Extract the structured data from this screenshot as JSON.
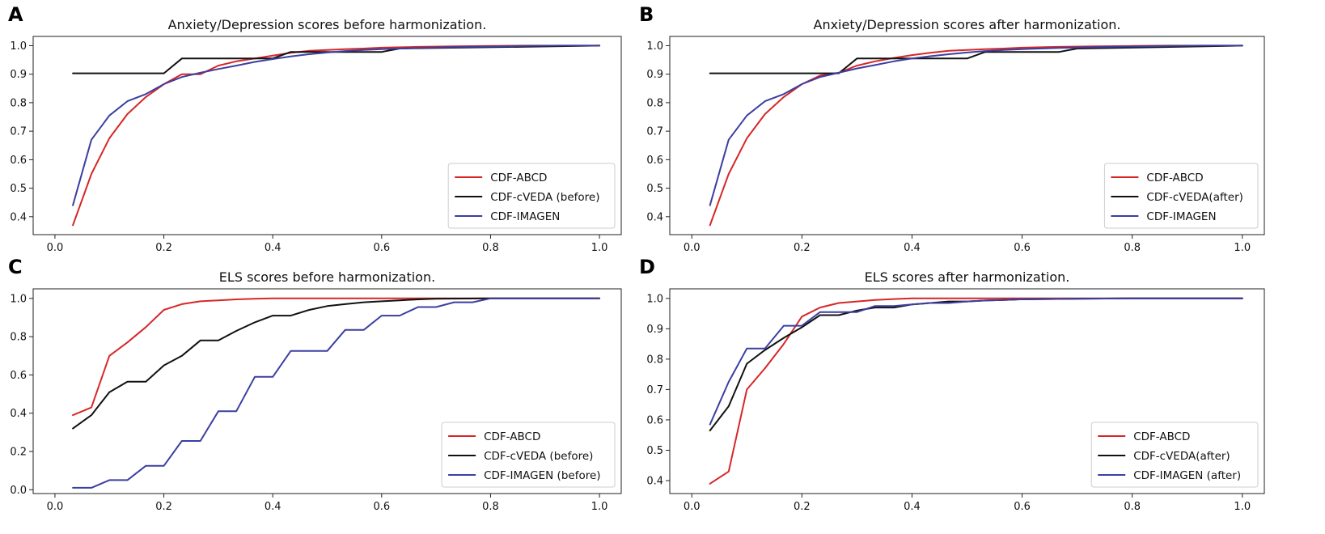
{
  "chart_data": [
    {
      "panel": "A",
      "type": "line",
      "title": "Anxiety/Depression scores before harmonization.",
      "xlim": [
        0.0,
        1.0
      ],
      "ylim": [
        0.35,
        1.0
      ],
      "xticks": [
        "0.0",
        "0.2",
        "0.4",
        "0.6",
        "0.8",
        "1.0"
      ],
      "yticks": [
        "0.4",
        "0.5",
        "0.6",
        "0.7",
        "0.8",
        "0.9",
        "1.0"
      ],
      "xtick_values": [
        0.0,
        0.2,
        0.4,
        0.6,
        0.8,
        1.0
      ],
      "ytick_values": [
        0.4,
        0.5,
        0.6,
        0.7,
        0.8,
        0.9,
        1.0
      ],
      "legend_position": "lower-right",
      "series": [
        {
          "name": "CDF-ABCD",
          "color": "#d62728",
          "x": [
            0.033,
            0.067,
            0.1,
            0.133,
            0.167,
            0.2,
            0.233,
            0.267,
            0.3,
            0.333,
            0.367,
            0.4,
            0.433,
            0.467,
            0.5,
            0.533,
            0.567,
            0.6,
            0.667,
            0.733,
            0.8,
            0.867,
            0.933,
            1.0
          ],
          "y": [
            0.37,
            0.55,
            0.675,
            0.76,
            0.82,
            0.865,
            0.9,
            0.9,
            0.93,
            0.945,
            0.955,
            0.965,
            0.975,
            0.982,
            0.985,
            0.988,
            0.99,
            0.993,
            0.996,
            0.998,
            0.999,
            1.0,
            1.0,
            1.0
          ]
        },
        {
          "name": "CDF-cVEDA (before)",
          "color": "#111111",
          "x": [
            0.033,
            0.2,
            0.233,
            0.4,
            0.433,
            0.6,
            0.633,
            1.0
          ],
          "y": [
            0.903,
            0.903,
            0.955,
            0.955,
            0.978,
            0.978,
            0.99,
            1.0
          ]
        },
        {
          "name": "CDF-IMAGEN",
          "color": "#3b3fa0",
          "x": [
            0.033,
            0.067,
            0.1,
            0.133,
            0.167,
            0.2,
            0.233,
            0.267,
            0.3,
            0.333,
            0.367,
            0.4,
            0.433,
            0.467,
            0.5,
            0.533,
            0.567,
            0.6,
            0.667,
            0.733,
            0.8,
            0.867,
            0.933,
            1.0
          ],
          "y": [
            0.44,
            0.67,
            0.755,
            0.805,
            0.83,
            0.865,
            0.89,
            0.905,
            0.918,
            0.93,
            0.943,
            0.953,
            0.962,
            0.97,
            0.976,
            0.981,
            0.985,
            0.988,
            0.992,
            0.995,
            0.997,
            0.999,
            1.0,
            1.0
          ]
        }
      ]
    },
    {
      "panel": "B",
      "type": "line",
      "title": "Anxiety/Depression scores after harmonization.",
      "xlim": [
        0.0,
        1.0
      ],
      "ylim": [
        0.35,
        1.0
      ],
      "xticks": [
        "0.0",
        "0.2",
        "0.4",
        "0.6",
        "0.8",
        "1.0"
      ],
      "yticks": [
        "0.4",
        "0.5",
        "0.6",
        "0.7",
        "0.8",
        "0.9",
        "1.0"
      ],
      "xtick_values": [
        0.0,
        0.2,
        0.4,
        0.6,
        0.8,
        1.0
      ],
      "ytick_values": [
        0.4,
        0.5,
        0.6,
        0.7,
        0.8,
        0.9,
        1.0
      ],
      "legend_position": "lower-right",
      "series": [
        {
          "name": "CDF-ABCD",
          "color": "#d62728",
          "x": [
            0.033,
            0.067,
            0.1,
            0.133,
            0.167,
            0.2,
            0.233,
            0.267,
            0.3,
            0.333,
            0.367,
            0.4,
            0.433,
            0.467,
            0.5,
            0.533,
            0.567,
            0.6,
            0.667,
            0.733,
            0.8,
            0.867,
            0.933,
            1.0
          ],
          "y": [
            0.37,
            0.55,
            0.675,
            0.76,
            0.82,
            0.865,
            0.895,
            0.905,
            0.93,
            0.945,
            0.957,
            0.967,
            0.975,
            0.982,
            0.985,
            0.988,
            0.99,
            0.993,
            0.996,
            0.998,
            0.999,
            1.0,
            1.0,
            1.0
          ]
        },
        {
          "name": "CDF-cVEDA(after)",
          "color": "#111111",
          "x": [
            0.033,
            0.267,
            0.3,
            0.367,
            0.4,
            0.5,
            0.533,
            0.667,
            0.7,
            1.0
          ],
          "y": [
            0.903,
            0.903,
            0.955,
            0.955,
            0.955,
            0.955,
            0.978,
            0.978,
            0.99,
            1.0
          ]
        },
        {
          "name": "CDF-IMAGEN",
          "color": "#3b3fa0",
          "x": [
            0.033,
            0.067,
            0.1,
            0.133,
            0.167,
            0.2,
            0.233,
            0.267,
            0.3,
            0.333,
            0.367,
            0.4,
            0.433,
            0.467,
            0.5,
            0.533,
            0.567,
            0.6,
            0.667,
            0.733,
            0.8,
            0.867,
            0.933,
            1.0
          ],
          "y": [
            0.44,
            0.67,
            0.755,
            0.805,
            0.83,
            0.865,
            0.89,
            0.905,
            0.92,
            0.932,
            0.945,
            0.955,
            0.963,
            0.97,
            0.976,
            0.981,
            0.985,
            0.988,
            0.992,
            0.995,
            0.997,
            0.999,
            1.0,
            1.0
          ]
        }
      ]
    },
    {
      "panel": "C",
      "type": "line",
      "title": "ELS scores before harmonization.",
      "xlim": [
        0.0,
        1.0
      ],
      "ylim": [
        0.0,
        1.0
      ],
      "xticks": [
        "0.0",
        "0.2",
        "0.4",
        "0.6",
        "0.8",
        "1.0"
      ],
      "yticks": [
        "0.0",
        "0.2",
        "0.4",
        "0.6",
        "0.8",
        "1.0"
      ],
      "xtick_values": [
        0.0,
        0.2,
        0.4,
        0.6,
        0.8,
        1.0
      ],
      "ytick_values": [
        0.0,
        0.2,
        0.4,
        0.6,
        0.8,
        1.0
      ],
      "legend_position": "lower-right",
      "series": [
        {
          "name": "CDF-ABCD",
          "color": "#d62728",
          "x": [
            0.033,
            0.067,
            0.1,
            0.133,
            0.167,
            0.2,
            0.233,
            0.267,
            0.3,
            0.333,
            0.367,
            0.4,
            0.5,
            0.6,
            0.7,
            0.8,
            0.9,
            1.0
          ],
          "y": [
            0.39,
            0.43,
            0.7,
            0.77,
            0.85,
            0.94,
            0.97,
            0.985,
            0.99,
            0.995,
            0.998,
            1.0,
            1.0,
            1.0,
            1.0,
            1.0,
            1.0,
            1.0
          ]
        },
        {
          "name": "CDF-cVEDA (before)",
          "color": "#111111",
          "x": [
            0.033,
            0.067,
            0.1,
            0.133,
            0.167,
            0.2,
            0.233,
            0.267,
            0.3,
            0.333,
            0.367,
            0.4,
            0.433,
            0.467,
            0.5,
            0.533,
            0.567,
            0.6,
            0.633,
            0.667,
            0.7,
            0.8,
            0.9,
            1.0
          ],
          "y": [
            0.32,
            0.39,
            0.51,
            0.565,
            0.565,
            0.65,
            0.7,
            0.78,
            0.78,
            0.83,
            0.875,
            0.91,
            0.91,
            0.94,
            0.96,
            0.97,
            0.98,
            0.985,
            0.99,
            0.995,
            0.998,
            1.0,
            1.0,
            1.0
          ]
        },
        {
          "name": "CDF-IMAGEN (before)",
          "color": "#3b3fa0",
          "x": [
            0.033,
            0.067,
            0.1,
            0.133,
            0.167,
            0.2,
            0.233,
            0.267,
            0.3,
            0.333,
            0.367,
            0.4,
            0.433,
            0.467,
            0.5,
            0.533,
            0.567,
            0.6,
            0.633,
            0.667,
            0.7,
            0.733,
            0.767,
            0.8,
            1.0
          ],
          "y": [
            0.01,
            0.01,
            0.05,
            0.05,
            0.125,
            0.125,
            0.255,
            0.255,
            0.41,
            0.41,
            0.59,
            0.59,
            0.725,
            0.725,
            0.725,
            0.835,
            0.835,
            0.91,
            0.91,
            0.955,
            0.955,
            0.98,
            0.98,
            1.0,
            1.0
          ]
        }
      ]
    },
    {
      "panel": "D",
      "type": "line",
      "title": "ELS scores after harmonization.",
      "xlim": [
        0.0,
        1.0
      ],
      "ylim": [
        0.37,
        1.0
      ],
      "xticks": [
        "0.0",
        "0.2",
        "0.4",
        "0.6",
        "0.8",
        "1.0"
      ],
      "yticks": [
        "0.4",
        "0.5",
        "0.6",
        "0.7",
        "0.8",
        "0.9",
        "1.0"
      ],
      "xtick_values": [
        0.0,
        0.2,
        0.4,
        0.6,
        0.8,
        1.0
      ],
      "ytick_values": [
        0.4,
        0.5,
        0.6,
        0.7,
        0.8,
        0.9,
        1.0
      ],
      "legend_position": "lower-right",
      "series": [
        {
          "name": "CDF-ABCD",
          "color": "#d62728",
          "x": [
            0.033,
            0.067,
            0.1,
            0.133,
            0.167,
            0.2,
            0.233,
            0.267,
            0.3,
            0.333,
            0.367,
            0.4,
            0.5,
            0.6,
            0.7,
            0.8,
            0.9,
            1.0
          ],
          "y": [
            0.39,
            0.43,
            0.7,
            0.77,
            0.85,
            0.94,
            0.97,
            0.985,
            0.99,
            0.995,
            0.998,
            1.0,
            1.0,
            1.0,
            1.0,
            1.0,
            1.0,
            1.0
          ]
        },
        {
          "name": "CDF-cVEDA(after)",
          "color": "#111111",
          "x": [
            0.033,
            0.067,
            0.1,
            0.133,
            0.167,
            0.2,
            0.233,
            0.267,
            0.3,
            0.333,
            0.367,
            0.4,
            0.433,
            0.467,
            0.5,
            0.533,
            0.567,
            0.6,
            0.7,
            0.8,
            0.9,
            1.0
          ],
          "y": [
            0.565,
            0.645,
            0.785,
            0.83,
            0.87,
            0.905,
            0.945,
            0.945,
            0.96,
            0.97,
            0.97,
            0.98,
            0.985,
            0.99,
            0.99,
            0.993,
            0.995,
            0.997,
            0.999,
            1.0,
            1.0,
            1.0
          ]
        },
        {
          "name": "CDF-IMAGEN (after)",
          "color": "#3b3fa0",
          "x": [
            0.033,
            0.067,
            0.1,
            0.133,
            0.167,
            0.2,
            0.233,
            0.267,
            0.3,
            0.333,
            0.367,
            0.4,
            0.433,
            0.467,
            0.5,
            0.533,
            0.567,
            0.6,
            0.7,
            0.8,
            0.9,
            1.0
          ],
          "y": [
            0.585,
            0.725,
            0.835,
            0.835,
            0.91,
            0.91,
            0.955,
            0.955,
            0.955,
            0.975,
            0.975,
            0.98,
            0.985,
            0.985,
            0.99,
            0.993,
            0.995,
            0.997,
            0.999,
            1.0,
            1.0,
            1.0
          ]
        }
      ]
    }
  ]
}
